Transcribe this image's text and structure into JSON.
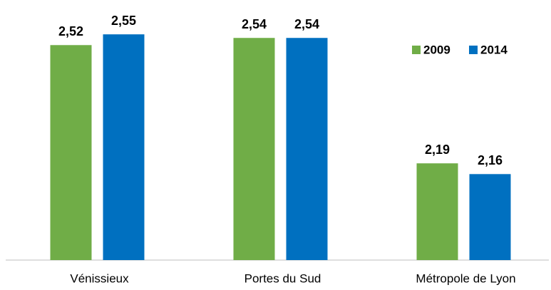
{
  "chart_data": {
    "type": "bar",
    "categories": [
      "Vénissieux",
      "Portes du Sud",
      "Métropole de Lyon"
    ],
    "series": [
      {
        "name": "2009",
        "color": "#70ad47",
        "values": [
          2.52,
          2.54,
          2.19
        ],
        "value_labels": [
          "2,52",
          "2,54",
          "2,19"
        ]
      },
      {
        "name": "2014",
        "color": "#0070c0",
        "values": [
          2.55,
          2.54,
          2.16
        ],
        "value_labels": [
          "2,55",
          "2,54",
          "2,16"
        ]
      }
    ],
    "ylim": [
      1.92,
      2.62
    ],
    "legend": "top-right"
  }
}
